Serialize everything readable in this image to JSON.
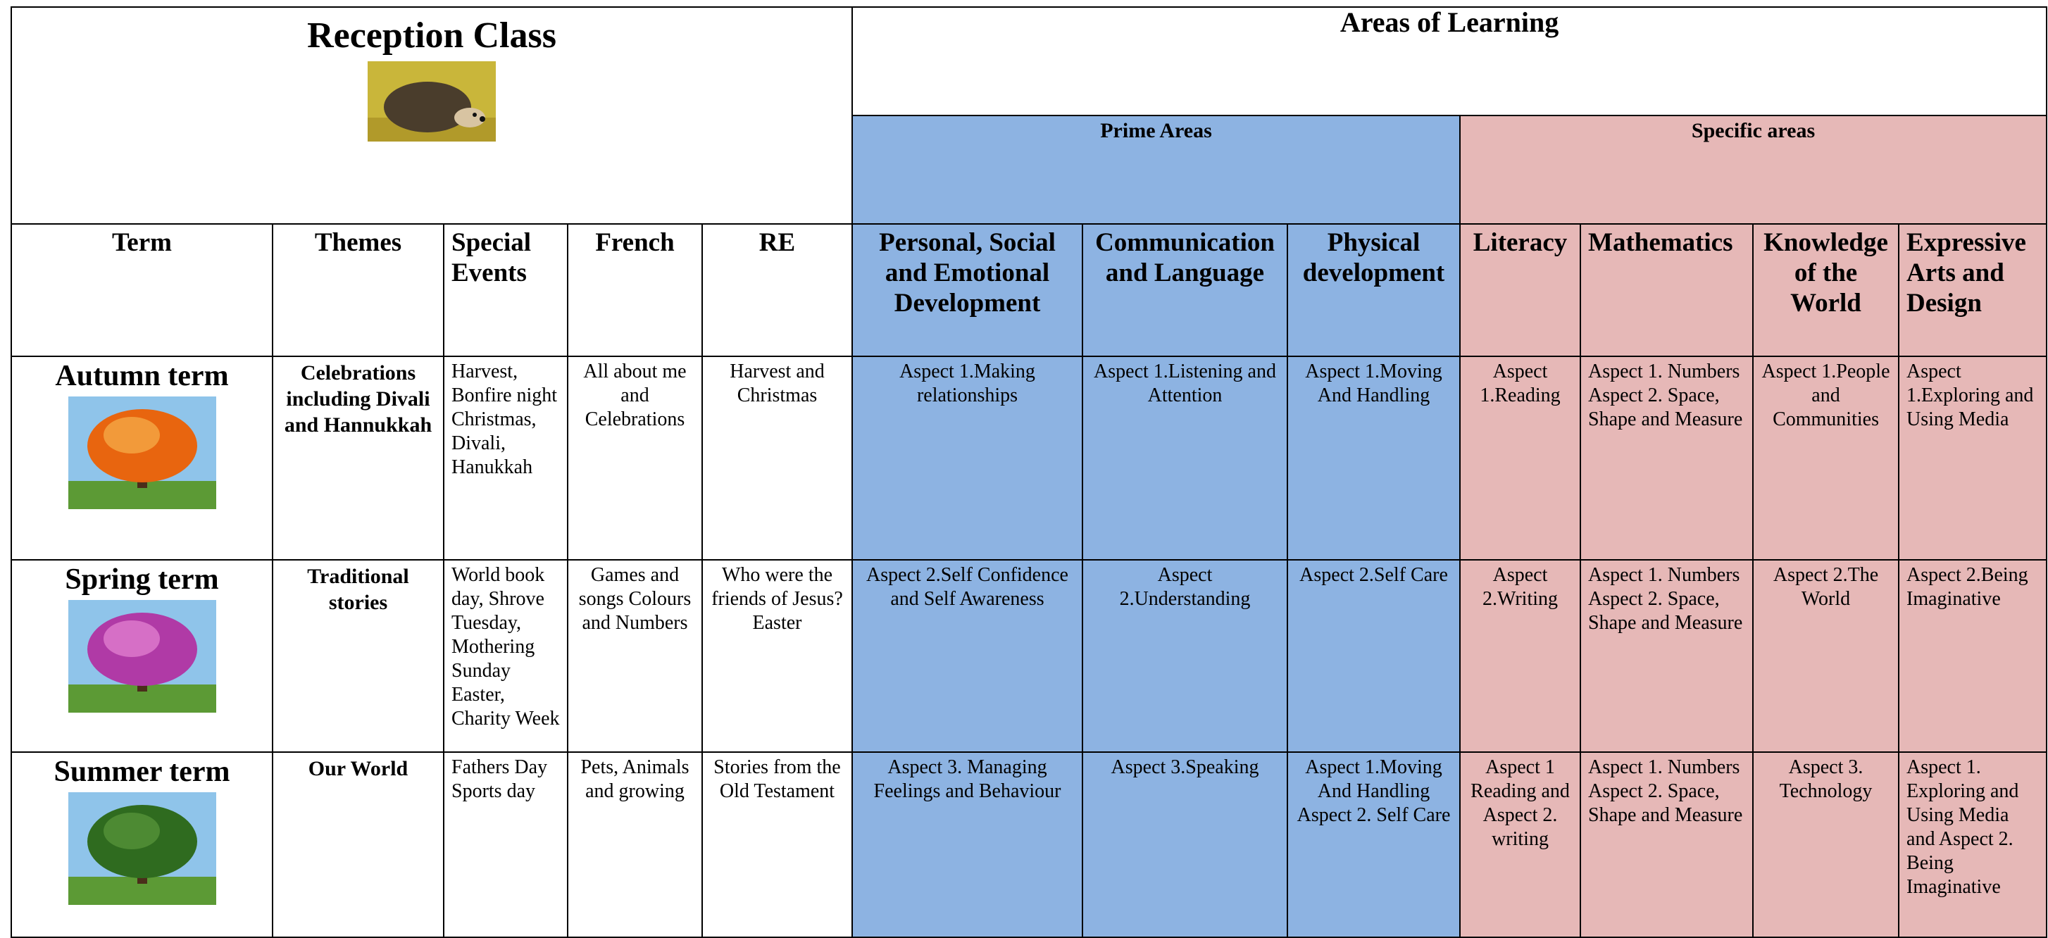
{
  "header": {
    "title": "Reception Class",
    "areas_title": "Areas of Learning",
    "prime": "Prime Areas",
    "specific": "Specific areas"
  },
  "columns": [
    "Term",
    "Themes",
    "Special Events",
    "French",
    "RE",
    "Personal, Social and Emotional Development",
    "Communication and Language",
    "Physical development",
    "Literacy",
    "Mathematics",
    "Knowledge of the World",
    "Expressive Arts and Design"
  ],
  "rows": [
    [
      "Autumn term",
      "Celebrations including Divali and Hannukkah",
      "Harvest, Bonfire night Christmas, Divali, Hanukkah",
      "All about me and Celebrations",
      "Harvest and Christmas",
      "Aspect 1.Making relationships",
      "Aspect 1.Listening and Attention",
      "Aspect 1.Moving And Handling",
      "Aspect 1.Reading",
      "Aspect 1. Numbers Aspect 2. Space, Shape and Measure",
      "Aspect 1.People and Communities",
      "Aspect 1.Exploring and Using Media"
    ],
    [
      "Spring term",
      "Traditional stories",
      "World book day, Shrove Tuesday, Mothering Sunday Easter, Charity Week",
      "Games and songs Colours and Numbers",
      "Who were the friends of Jesus? Easter",
      "Aspect 2.Self Confidence and Self Awareness",
      "Aspect 2.Understanding",
      "Aspect 2.Self Care",
      "Aspect 2.Writing",
      "Aspect 1. Numbers Aspect 2. Space, Shape and Measure",
      "Aspect 2.The World",
      "Aspect 2.Being Imaginative"
    ],
    [
      "Summer term",
      "Our World",
      "Fathers Day Sports day",
      "Pets, Animals and growing",
      "Stories from the Old Testament",
      "Aspect 3. Managing Feelings and Behaviour",
      "Aspect 3.Speaking",
      "Aspect 1.Moving And Handling Aspect 2. Self Care",
      "Aspect 1 Reading and Aspect 2. writing",
      "Aspect 1. Numbers Aspect 2. Space, Shape and Measure",
      "Aspect 3. Technology",
      "Aspect 1. Exploring and Using Media and Aspect 2. Being Imaginative"
    ]
  ]
}
